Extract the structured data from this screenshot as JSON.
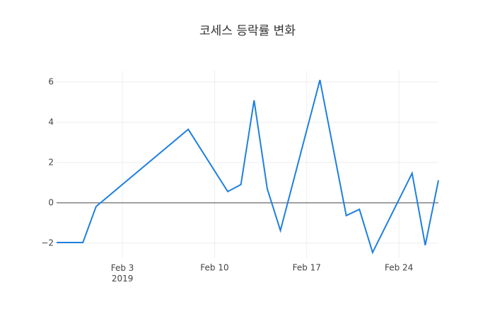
{
  "chart_data": {
    "type": "line",
    "title": "코세스 등락률 변화",
    "x": [
      "2019-01-29",
      "2019-01-31",
      "2019-02-01",
      "2019-02-08",
      "2019-02-11",
      "2019-02-12",
      "2019-02-13",
      "2019-02-14",
      "2019-02-15",
      "2019-02-18",
      "2019-02-20",
      "2019-02-21",
      "2019-02-22",
      "2019-02-25",
      "2019-02-26",
      "2019-02-27"
    ],
    "series": [
      {
        "color": "#1f7fe0",
        "values": [
          -1.97,
          -1.97,
          -0.18,
          3.65,
          0.56,
          0.91,
          5.09,
          0.7,
          -1.37,
          6.1,
          -0.63,
          -0.32,
          -2.46,
          1.47,
          -2.1,
          1.12
        ]
      }
    ],
    "xlim": [
      "2019-01-29",
      "2019-02-27"
    ],
    "xticks": [
      {
        "value": "2019-02-03",
        "label": "Feb 3\n2019"
      },
      {
        "value": "2019-02-10",
        "label": "Feb 10"
      },
      {
        "value": "2019-02-17",
        "label": "Feb 17"
      },
      {
        "value": "2019-02-24",
        "label": "Feb 24"
      }
    ],
    "ylim": [
      -2.74,
      6.56
    ],
    "yticks": [
      {
        "value": -2,
        "label": "−2"
      },
      0,
      2,
      4,
      6
    ],
    "grid": true,
    "zeroline": true
  }
}
